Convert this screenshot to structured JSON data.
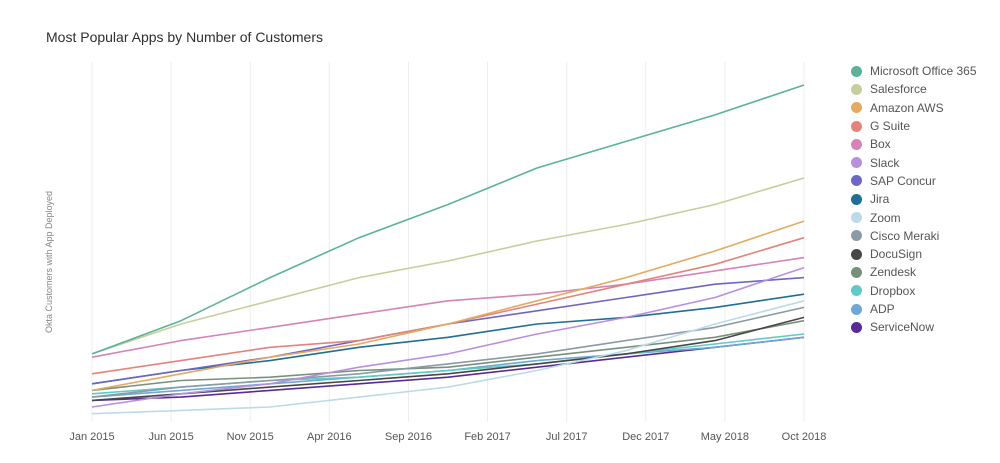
{
  "chart_data": {
    "type": "line",
    "title": "Most Popular Apps by Number of Customers",
    "xlabel": "",
    "ylabel": "Okta Customers with App Deployed",
    "x_ticks": [
      "Jan 2015",
      "Jun 2015",
      "Nov 2015",
      "Apr 2016",
      "Sep 2016",
      "Feb 2017",
      "Jul 2017",
      "Dec 2017",
      "May 2018",
      "Oct 2018"
    ],
    "x_range": [
      0,
      45
    ],
    "ylim": [
      0,
      100
    ],
    "grid": "vertical",
    "legend_position": "right",
    "series": [
      {
        "name": "Microsoft Office 365",
        "color": "#5bb39a",
        "values": [
          19,
          29,
          42,
          54,
          64,
          75,
          83,
          91,
          100
        ]
      },
      {
        "name": "Salesforce",
        "color": "#c6cf9b",
        "values": [
          19,
          28,
          35,
          42,
          47,
          53,
          58,
          64,
          72
        ]
      },
      {
        "name": "Amazon AWS",
        "color": "#e5aa60",
        "values": [
          8,
          13,
          18,
          22,
          28,
          35,
          42,
          50,
          59
        ]
      },
      {
        "name": "G Suite",
        "color": "#e5837a",
        "values": [
          13,
          17,
          21,
          23,
          28,
          34,
          40,
          46,
          54
        ]
      },
      {
        "name": "Box",
        "color": "#d584b8",
        "values": [
          18,
          23,
          27,
          31,
          35,
          37,
          40,
          44,
          48
        ]
      },
      {
        "name": "Slack",
        "color": "#b790e0",
        "values": [
          3,
          7,
          10,
          15,
          19,
          25,
          30,
          36,
          45
        ]
      },
      {
        "name": "SAP Concur",
        "color": "#6d66c7",
        "values": [
          10,
          14,
          18,
          23,
          28,
          32,
          36,
          40,
          42
        ]
      },
      {
        "name": "Jira",
        "color": "#1f6f96",
        "values": [
          10,
          14,
          17,
          21,
          24,
          28,
          30,
          33,
          37
        ]
      },
      {
        "name": "Zoom",
        "color": "#bcdbe8",
        "values": [
          1,
          2,
          3,
          6,
          9,
          14,
          20,
          28,
          35
        ]
      },
      {
        "name": "Cisco Meraki",
        "color": "#8a9ba5",
        "values": [
          6,
          9,
          11,
          13,
          16,
          19,
          23,
          27,
          33
        ]
      },
      {
        "name": "DocuSign",
        "color": "#474747",
        "values": [
          5,
          7,
          9,
          11,
          13,
          16,
          19,
          23,
          30
        ]
      },
      {
        "name": "Zendesk",
        "color": "#78917a",
        "values": [
          8,
          11,
          12,
          14,
          15,
          18,
          21,
          24,
          29
        ]
      },
      {
        "name": "Dropbox",
        "color": "#5fcbc8",
        "values": [
          7,
          9,
          11,
          12,
          14,
          16,
          19,
          22,
          25
        ]
      },
      {
        "name": "ADP",
        "color": "#6ea8d4",
        "values": [
          6,
          8,
          10,
          12,
          14,
          17,
          19,
          21,
          24
        ]
      },
      {
        "name": "ServiceNow",
        "color": "#5a2a9a",
        "values": [
          5,
          6,
          8,
          10,
          12,
          15,
          18,
          21,
          24
        ]
      }
    ]
  }
}
